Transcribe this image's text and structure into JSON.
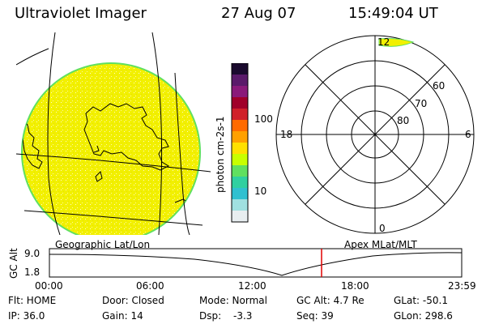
{
  "header": {
    "title": "Ultraviolet Imager",
    "date": "27 Aug 07",
    "time": "15:49:04 UT"
  },
  "colorbar": {
    "label": "photon cm-2s-1",
    "ticks": [
      "100",
      "10"
    ],
    "colors": [
      "#1a0a2e",
      "#5a1a6a",
      "#8a1a7a",
      "#a0002a",
      "#d0202a",
      "#ff6a00",
      "#ffa000",
      "#ffe000",
      "#c8ff00",
      "#60e060",
      "#30d0a0",
      "#30c0d0",
      "#a0e0e0",
      "#e8eef0"
    ]
  },
  "polar_plot": {
    "clock_labels": [
      "12",
      "18",
      "6",
      "0"
    ],
    "lat_labels": [
      "60",
      "70",
      "80"
    ]
  },
  "projection_labels": {
    "left": "Geographic Lat/Lon",
    "right": "Apex MLat/MLT"
  },
  "altitude_plot": {
    "ylabel": "GC Alt",
    "yticks": [
      "9.0",
      "1.8"
    ],
    "xticks": [
      "00:00",
      "06:00",
      "12:00",
      "18:00",
      "23:59"
    ],
    "current_time_marker": "15:49"
  },
  "status": {
    "flt": "Flt: HOME",
    "ip": "IP: 36.0",
    "door": "Door: Closed",
    "gain": "Gain: 14",
    "mode": "Mode: Normal",
    "dsp_label": "Dsp:",
    "dsp_value": "-3.3",
    "gc_alt": "GC Alt: 4.7 Re",
    "seq": "Seq: 39",
    "glat": "GLat: -50.1",
    "glon": "GLon: 298.6"
  },
  "palette": {
    "disk_fill": "#f2f000",
    "disk_edge": "#60e060",
    "marker": "#e00000"
  }
}
